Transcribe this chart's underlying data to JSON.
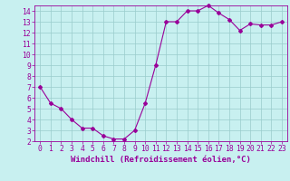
{
  "x": [
    0,
    1,
    2,
    3,
    4,
    5,
    6,
    7,
    8,
    9,
    10,
    11,
    12,
    13,
    14,
    15,
    16,
    17,
    18,
    19,
    20,
    21,
    22,
    23
  ],
  "y": [
    7.0,
    5.5,
    5.0,
    4.0,
    3.2,
    3.2,
    2.5,
    2.2,
    2.2,
    3.0,
    5.5,
    9.0,
    13.0,
    13.0,
    14.0,
    14.0,
    14.5,
    13.8,
    13.2,
    12.2,
    12.8,
    12.7,
    12.7,
    13.0
  ],
  "line_color": "#990099",
  "marker": "D",
  "marker_size": 2.0,
  "bg_color": "#c8f0f0",
  "grid_color": "#99cccc",
  "xlabel": "Windchill (Refroidissement éolien,°C)",
  "ylim": [
    2,
    14
  ],
  "xlim": [
    -0.5,
    23.5
  ],
  "yticks": [
    2,
    3,
    4,
    5,
    6,
    7,
    8,
    9,
    10,
    11,
    12,
    13,
    14
  ],
  "xticks": [
    0,
    1,
    2,
    3,
    4,
    5,
    6,
    7,
    8,
    9,
    10,
    11,
    12,
    13,
    14,
    15,
    16,
    17,
    18,
    19,
    20,
    21,
    22,
    23
  ],
  "tick_color": "#990099",
  "label_color": "#990099",
  "label_fontsize": 6.5,
  "tick_fontsize": 5.8,
  "xlabel_fontsize": 6.5
}
